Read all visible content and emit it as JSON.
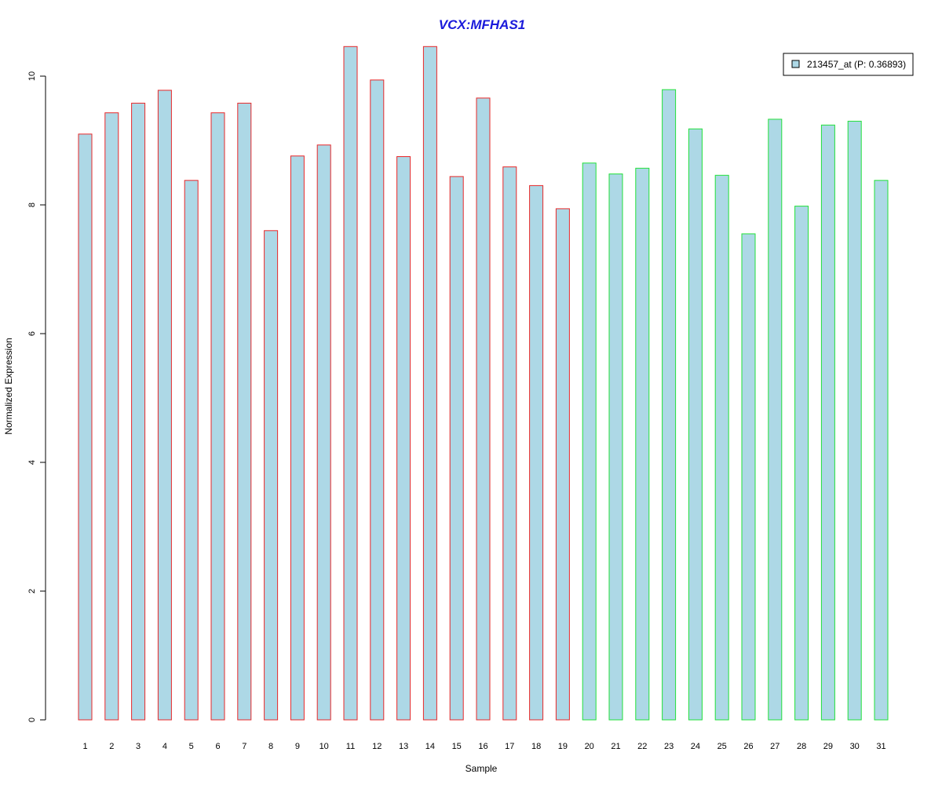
{
  "chart_data": {
    "type": "bar",
    "title": "VCX:MFHAS1",
    "xlabel": "Sample",
    "ylabel": "Normalized Expression",
    "categories": [
      "1",
      "2",
      "3",
      "4",
      "5",
      "6",
      "7",
      "8",
      "9",
      "10",
      "11",
      "12",
      "13",
      "14",
      "15",
      "16",
      "17",
      "18",
      "19",
      "20",
      "21",
      "22",
      "23",
      "24",
      "25",
      "26",
      "27",
      "28",
      "29",
      "30",
      "31"
    ],
    "series": [
      {
        "name": "213457_at (P: 0.36893)",
        "values": [
          9.1,
          9.43,
          9.58,
          9.78,
          8.38,
          9.43,
          9.58,
          7.6,
          8.76,
          8.93,
          10.46,
          9.94,
          8.75,
          10.46,
          8.44,
          9.66,
          8.59,
          8.3,
          7.94,
          8.65,
          8.48,
          8.57,
          9.79,
          9.18,
          8.46,
          7.55,
          9.33,
          7.98,
          9.24,
          9.3,
          8.38
        ]
      }
    ],
    "groups": [
      {
        "samples": [
          1,
          2,
          3,
          4,
          5,
          6,
          7,
          8,
          9,
          10,
          11,
          12,
          13,
          14,
          15,
          16,
          17,
          18,
          19
        ],
        "border_color": "#e8282a"
      },
      {
        "samples": [
          20,
          21,
          22,
          23,
          24,
          25,
          26,
          27,
          28,
          29,
          30,
          31
        ],
        "border_color": "#22e03a"
      }
    ],
    "y_ticks": [
      0,
      2,
      4,
      6,
      8,
      10
    ],
    "ylim": [
      0,
      10.46
    ],
    "grid": false,
    "legend_position": "top-right",
    "colors": {
      "bar_fill": "#add8e6",
      "title": "#1a1adb",
      "axis": "#000000"
    }
  }
}
